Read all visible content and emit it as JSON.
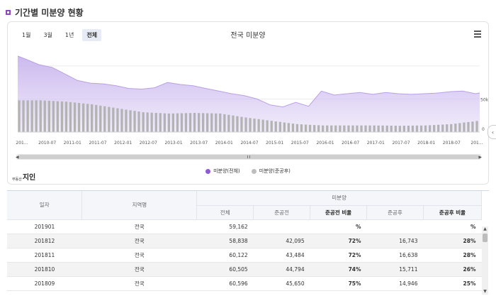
{
  "header": {
    "title": "기간별 미분양 현황"
  },
  "chart": {
    "range_buttons": [
      "1월",
      "3월",
      "1년",
      "전체"
    ],
    "active_range": "전체",
    "title": "전국 미분양",
    "y_tick_labels": [
      "50k",
      "0"
    ],
    "x_tick_labels": [
      "201...",
      "2010-07",
      "2011-01",
      "2011-07",
      "2012-01",
      "2012-07",
      "2013-01",
      "2013-07",
      "2014-01",
      "2014-07",
      "2015-01",
      "2015-07",
      "2016-01",
      "2016-07",
      "2017-01",
      "2017-07",
      "2018-01",
      "2018-07",
      "201..."
    ],
    "legend": [
      {
        "label": "미분양(전체)",
        "color": "#8e5bd6"
      },
      {
        "label": "미분양(준공후)",
        "color": "#bdbdbd"
      }
    ],
    "area_color": "#c9b6ee",
    "bar_color": "#b3b3b3"
  },
  "chart_data": {
    "type": "area",
    "x_range": [
      "2010-01",
      "2019-01"
    ],
    "ylim": [
      0,
      130000
    ],
    "series": [
      {
        "name": "미분양(전체)",
        "x": [
          "2010-01",
          "2010-03",
          "2010-06",
          "2010-09",
          "2010-12",
          "2011-03",
          "2011-06",
          "2011-09",
          "2011-12",
          "2012-03",
          "2012-06",
          "2012-09",
          "2012-12",
          "2013-03",
          "2013-06",
          "2013-09",
          "2013-12",
          "2014-03",
          "2014-06",
          "2014-09",
          "2014-12",
          "2015-03",
          "2015-06",
          "2015-09",
          "2015-12",
          "2016-03",
          "2016-06",
          "2016-09",
          "2016-12",
          "2017-03",
          "2017-06",
          "2017-09",
          "2017-12",
          "2018-03",
          "2018-06",
          "2018-09",
          "2018-12",
          "2019-01"
        ],
        "values": [
          115000,
          110000,
          102000,
          98000,
          88000,
          78000,
          74000,
          73000,
          70000,
          66000,
          65000,
          67000,
          75000,
          72000,
          70000,
          66000,
          62000,
          58000,
          55000,
          50000,
          41000,
          38000,
          45000,
          39000,
          62000,
          56000,
          58000,
          60000,
          57000,
          60000,
          58000,
          57000,
          58000,
          59000,
          61000,
          62000,
          58000,
          59162
        ]
      },
      {
        "name": "미분양(준공후)",
        "x": [
          "2010-01",
          "2010-06",
          "2010-12",
          "2011-06",
          "2011-12",
          "2012-06",
          "2012-12",
          "2013-06",
          "2013-12",
          "2014-06",
          "2014-12",
          "2015-06",
          "2015-12",
          "2016-06",
          "2016-12",
          "2017-06",
          "2017-12",
          "2018-06",
          "2018-12"
        ],
        "values": [
          48000,
          48000,
          46000,
          42000,
          36000,
          30000,
          28000,
          29000,
          28000,
          22000,
          17000,
          12000,
          10000,
          10000,
          10000,
          9500,
          10000,
          12000,
          16743
        ]
      }
    ]
  },
  "brand": {
    "sub": "부동산",
    "main": "지인"
  },
  "table": {
    "headers": {
      "date": "일자",
      "region": "지역명",
      "group": "미분양",
      "total": "전체",
      "before": "준공전",
      "before_ratio": "준공전 비율",
      "after": "준공후",
      "after_ratio": "준공후 비율"
    },
    "rows": [
      {
        "date": "201901",
        "region": "전국",
        "total": "59,162",
        "before": "",
        "before_ratio": "%",
        "after": "",
        "after_ratio": "%"
      },
      {
        "date": "201812",
        "region": "전국",
        "total": "58,838",
        "before": "42,095",
        "before_ratio": "72%",
        "after": "16,743",
        "after_ratio": "28%"
      },
      {
        "date": "201811",
        "region": "전국",
        "total": "60,122",
        "before": "43,484",
        "before_ratio": "72%",
        "after": "16,638",
        "after_ratio": "28%"
      },
      {
        "date": "201810",
        "region": "전국",
        "total": "60,505",
        "before": "44,794",
        "before_ratio": "74%",
        "after": "15,711",
        "after_ratio": "26%"
      },
      {
        "date": "201809",
        "region": "전국",
        "total": "60,596",
        "before": "45,650",
        "before_ratio": "75%",
        "after": "14,946",
        "after_ratio": "25%"
      }
    ]
  }
}
